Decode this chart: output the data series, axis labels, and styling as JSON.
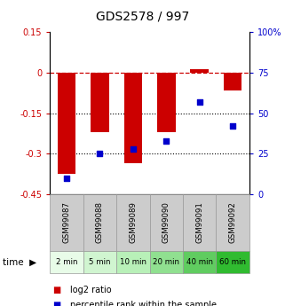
{
  "title": "GDS2578 / 997",
  "categories": [
    "GSM99087",
    "GSM99088",
    "GSM99089",
    "GSM99090",
    "GSM99091",
    "GSM99092"
  ],
  "time_labels": [
    "2 min",
    "5 min",
    "10 min",
    "20 min",
    "40 min",
    "60 min"
  ],
  "log2_ratios": [
    -0.375,
    -0.22,
    -0.335,
    -0.22,
    0.012,
    -0.065
  ],
  "percentile_ranks": [
    10,
    25,
    28,
    33,
    57,
    42
  ],
  "bar_color": "#cc0000",
  "dot_color": "#0000cc",
  "ylim_left": [
    -0.45,
    0.15
  ],
  "ylim_right": [
    0,
    100
  ],
  "yticks_left": [
    0.15,
    0,
    -0.15,
    -0.3,
    -0.45
  ],
  "yticks_right": [
    100,
    75,
    50,
    25,
    0
  ],
  "ytick_labels_left": [
    "0.15",
    "0",
    "-0.15",
    "-0.3",
    "-0.45"
  ],
  "ytick_labels_right": [
    "100%",
    "75",
    "50",
    "25",
    "0"
  ],
  "dotted_lines": [
    -0.15,
    -0.3
  ],
  "legend_items": [
    "log2 ratio",
    "percentile rank within the sample"
  ],
  "time_colors": [
    "#e8fce8",
    "#d0f5d0",
    "#b8f0b8",
    "#90e090",
    "#60cc60",
    "#30bb30"
  ],
  "gsm_bg_color": "#cccccc",
  "gsm_border_color": "#999999",
  "time_border_color": "#999999"
}
